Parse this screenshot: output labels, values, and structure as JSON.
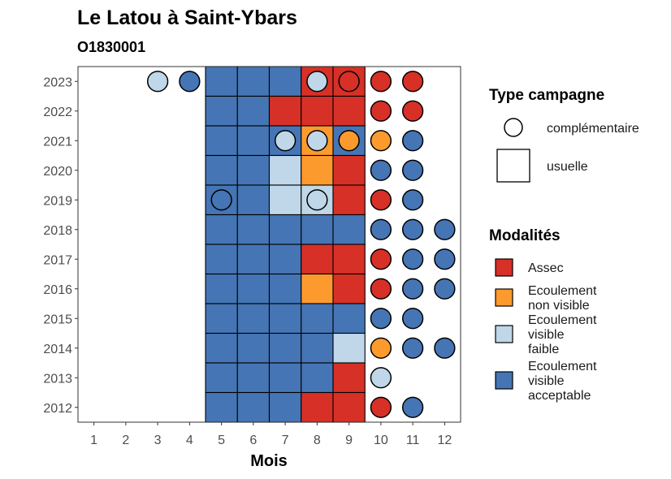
{
  "chart_data": {
    "type": "heatmap",
    "title": "Le Latou à Saint-Ybars",
    "subtitle": "O1830001",
    "xlabel": "Mois",
    "ylabel": "",
    "x_ticks": [
      1,
      2,
      3,
      4,
      5,
      6,
      7,
      8,
      9,
      10,
      11,
      12
    ],
    "y_ticks": [
      2023,
      2022,
      2021,
      2020,
      2019,
      2018,
      2017,
      2016,
      2015,
      2014,
      2013,
      2012
    ],
    "xlim": [
      0.5,
      12.5
    ],
    "ylim": [
      2011.5,
      2023.5
    ],
    "grid": false,
    "legend_position": "right",
    "legends": {
      "shape": {
        "title": "Type campagne",
        "entries": [
          {
            "key": "complementaire",
            "label": "complémentaire",
            "shape": "circle"
          },
          {
            "key": "usuelle",
            "label": "usuelle",
            "shape": "square"
          }
        ]
      },
      "fill": {
        "title": "Modalités",
        "entries": [
          {
            "key": "assec",
            "lines": [
              "Assec"
            ],
            "color": "#d73027"
          },
          {
            "key": "nonvisible",
            "lines": [
              "Ecoulement",
              "non visible"
            ],
            "color": "#fd9a2e"
          },
          {
            "key": "faible",
            "lines": [
              "Ecoulement",
              "visible",
              "faible"
            ],
            "color": "#bfd7e8"
          },
          {
            "key": "acceptable",
            "lines": [
              "Ecoulement",
              "visible",
              "acceptable"
            ],
            "color": "#4575b4"
          }
        ]
      }
    },
    "usuelle": [
      {
        "year": 2023,
        "values": {
          "5": "acceptable",
          "6": "acceptable",
          "7": "acceptable",
          "8": "assec",
          "9": "assec"
        }
      },
      {
        "year": 2022,
        "values": {
          "5": "acceptable",
          "6": "acceptable",
          "7": "assec",
          "8": "assec",
          "9": "assec"
        }
      },
      {
        "year": 2021,
        "values": {
          "5": "acceptable",
          "6": "acceptable",
          "7": "acceptable",
          "8": "nonvisible",
          "9": "acceptable"
        }
      },
      {
        "year": 2020,
        "values": {
          "5": "acceptable",
          "6": "acceptable",
          "7": "faible",
          "8": "nonvisible",
          "9": "assec"
        }
      },
      {
        "year": 2019,
        "values": {
          "5": "acceptable",
          "6": "acceptable",
          "7": "faible",
          "8": "faible",
          "9": "assec"
        }
      },
      {
        "year": 2018,
        "values": {
          "5": "acceptable",
          "6": "acceptable",
          "7": "acceptable",
          "8": "acceptable",
          "9": "acceptable"
        }
      },
      {
        "year": 2017,
        "values": {
          "5": "acceptable",
          "6": "acceptable",
          "7": "acceptable",
          "8": "assec",
          "9": "assec"
        }
      },
      {
        "year": 2016,
        "values": {
          "5": "acceptable",
          "6": "acceptable",
          "7": "acceptable",
          "8": "nonvisible",
          "9": "assec"
        }
      },
      {
        "year": 2015,
        "values": {
          "5": "acceptable",
          "6": "acceptable",
          "7": "acceptable",
          "8": "acceptable",
          "9": "acceptable"
        }
      },
      {
        "year": 2014,
        "values": {
          "5": "acceptable",
          "6": "acceptable",
          "7": "acceptable",
          "8": "acceptable",
          "9": "faible"
        }
      },
      {
        "year": 2013,
        "values": {
          "5": "acceptable",
          "6": "acceptable",
          "7": "acceptable",
          "8": "acceptable",
          "9": "assec"
        }
      },
      {
        "year": 2012,
        "values": {
          "5": "acceptable",
          "6": "acceptable",
          "7": "acceptable",
          "8": "assec",
          "9": "assec"
        }
      }
    ],
    "complementaire": [
      {
        "year": 2023,
        "values": {
          "3": "faible",
          "4": "acceptable",
          "8": "faible",
          "9": "assec",
          "10": "assec",
          "11": "assec"
        }
      },
      {
        "year": 2022,
        "values": {
          "10": "assec",
          "11": "assec"
        }
      },
      {
        "year": 2021,
        "values": {
          "7": "faible",
          "8": "faible",
          "9": "nonvisible",
          "10": "nonvisible",
          "11": "acceptable"
        }
      },
      {
        "year": 2020,
        "values": {
          "10": "acceptable",
          "11": "acceptable"
        }
      },
      {
        "year": 2019,
        "values": {
          "5": "acceptable",
          "8": "faible",
          "10": "assec",
          "11": "acceptable"
        }
      },
      {
        "year": 2018,
        "values": {
          "10": "acceptable",
          "11": "acceptable",
          "12": "acceptable"
        }
      },
      {
        "year": 2017,
        "values": {
          "10": "assec",
          "11": "acceptable",
          "12": "acceptable"
        }
      },
      {
        "year": 2016,
        "values": {
          "10": "assec",
          "11": "acceptable",
          "12": "acceptable"
        }
      },
      {
        "year": 2015,
        "values": {
          "10": "acceptable",
          "11": "acceptable"
        }
      },
      {
        "year": 2014,
        "values": {
          "10": "nonvisible",
          "11": "acceptable",
          "12": "acceptable"
        }
      },
      {
        "year": 2013,
        "values": {
          "10": "faible"
        }
      },
      {
        "year": 2012,
        "values": {
          "10": "assec",
          "11": "acceptable"
        }
      }
    ]
  }
}
